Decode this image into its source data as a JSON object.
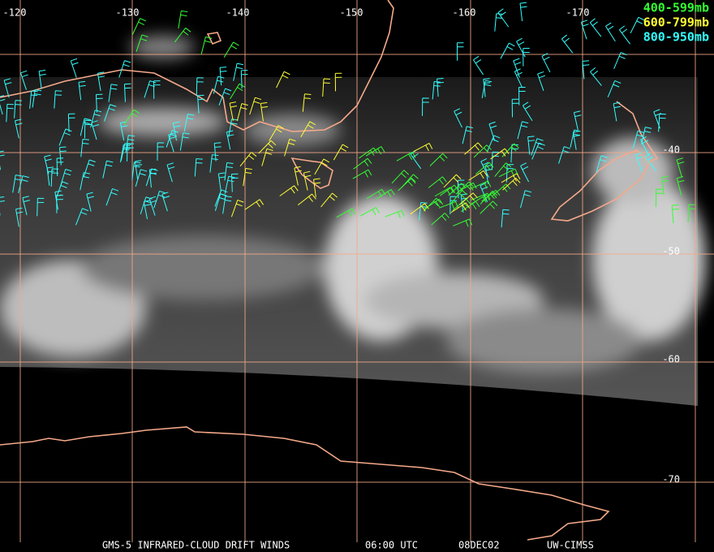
{
  "map": {
    "lon_labels": [
      "-120",
      "-130",
      "-140",
      "-150",
      "-160",
      "-170"
    ],
    "lat_labels": [
      "-40",
      "-50",
      "-60",
      "-70"
    ]
  },
  "legend": [
    "400-599mb",
    "600-799mb",
    "800-950mb"
  ],
  "caption": {
    "product": "GMS-5 INFRARED-CLOUD DRIFT WINDS",
    "time": "06:00 UTC",
    "date": "08DEC02",
    "source": "UW-CIMSS"
  }
}
